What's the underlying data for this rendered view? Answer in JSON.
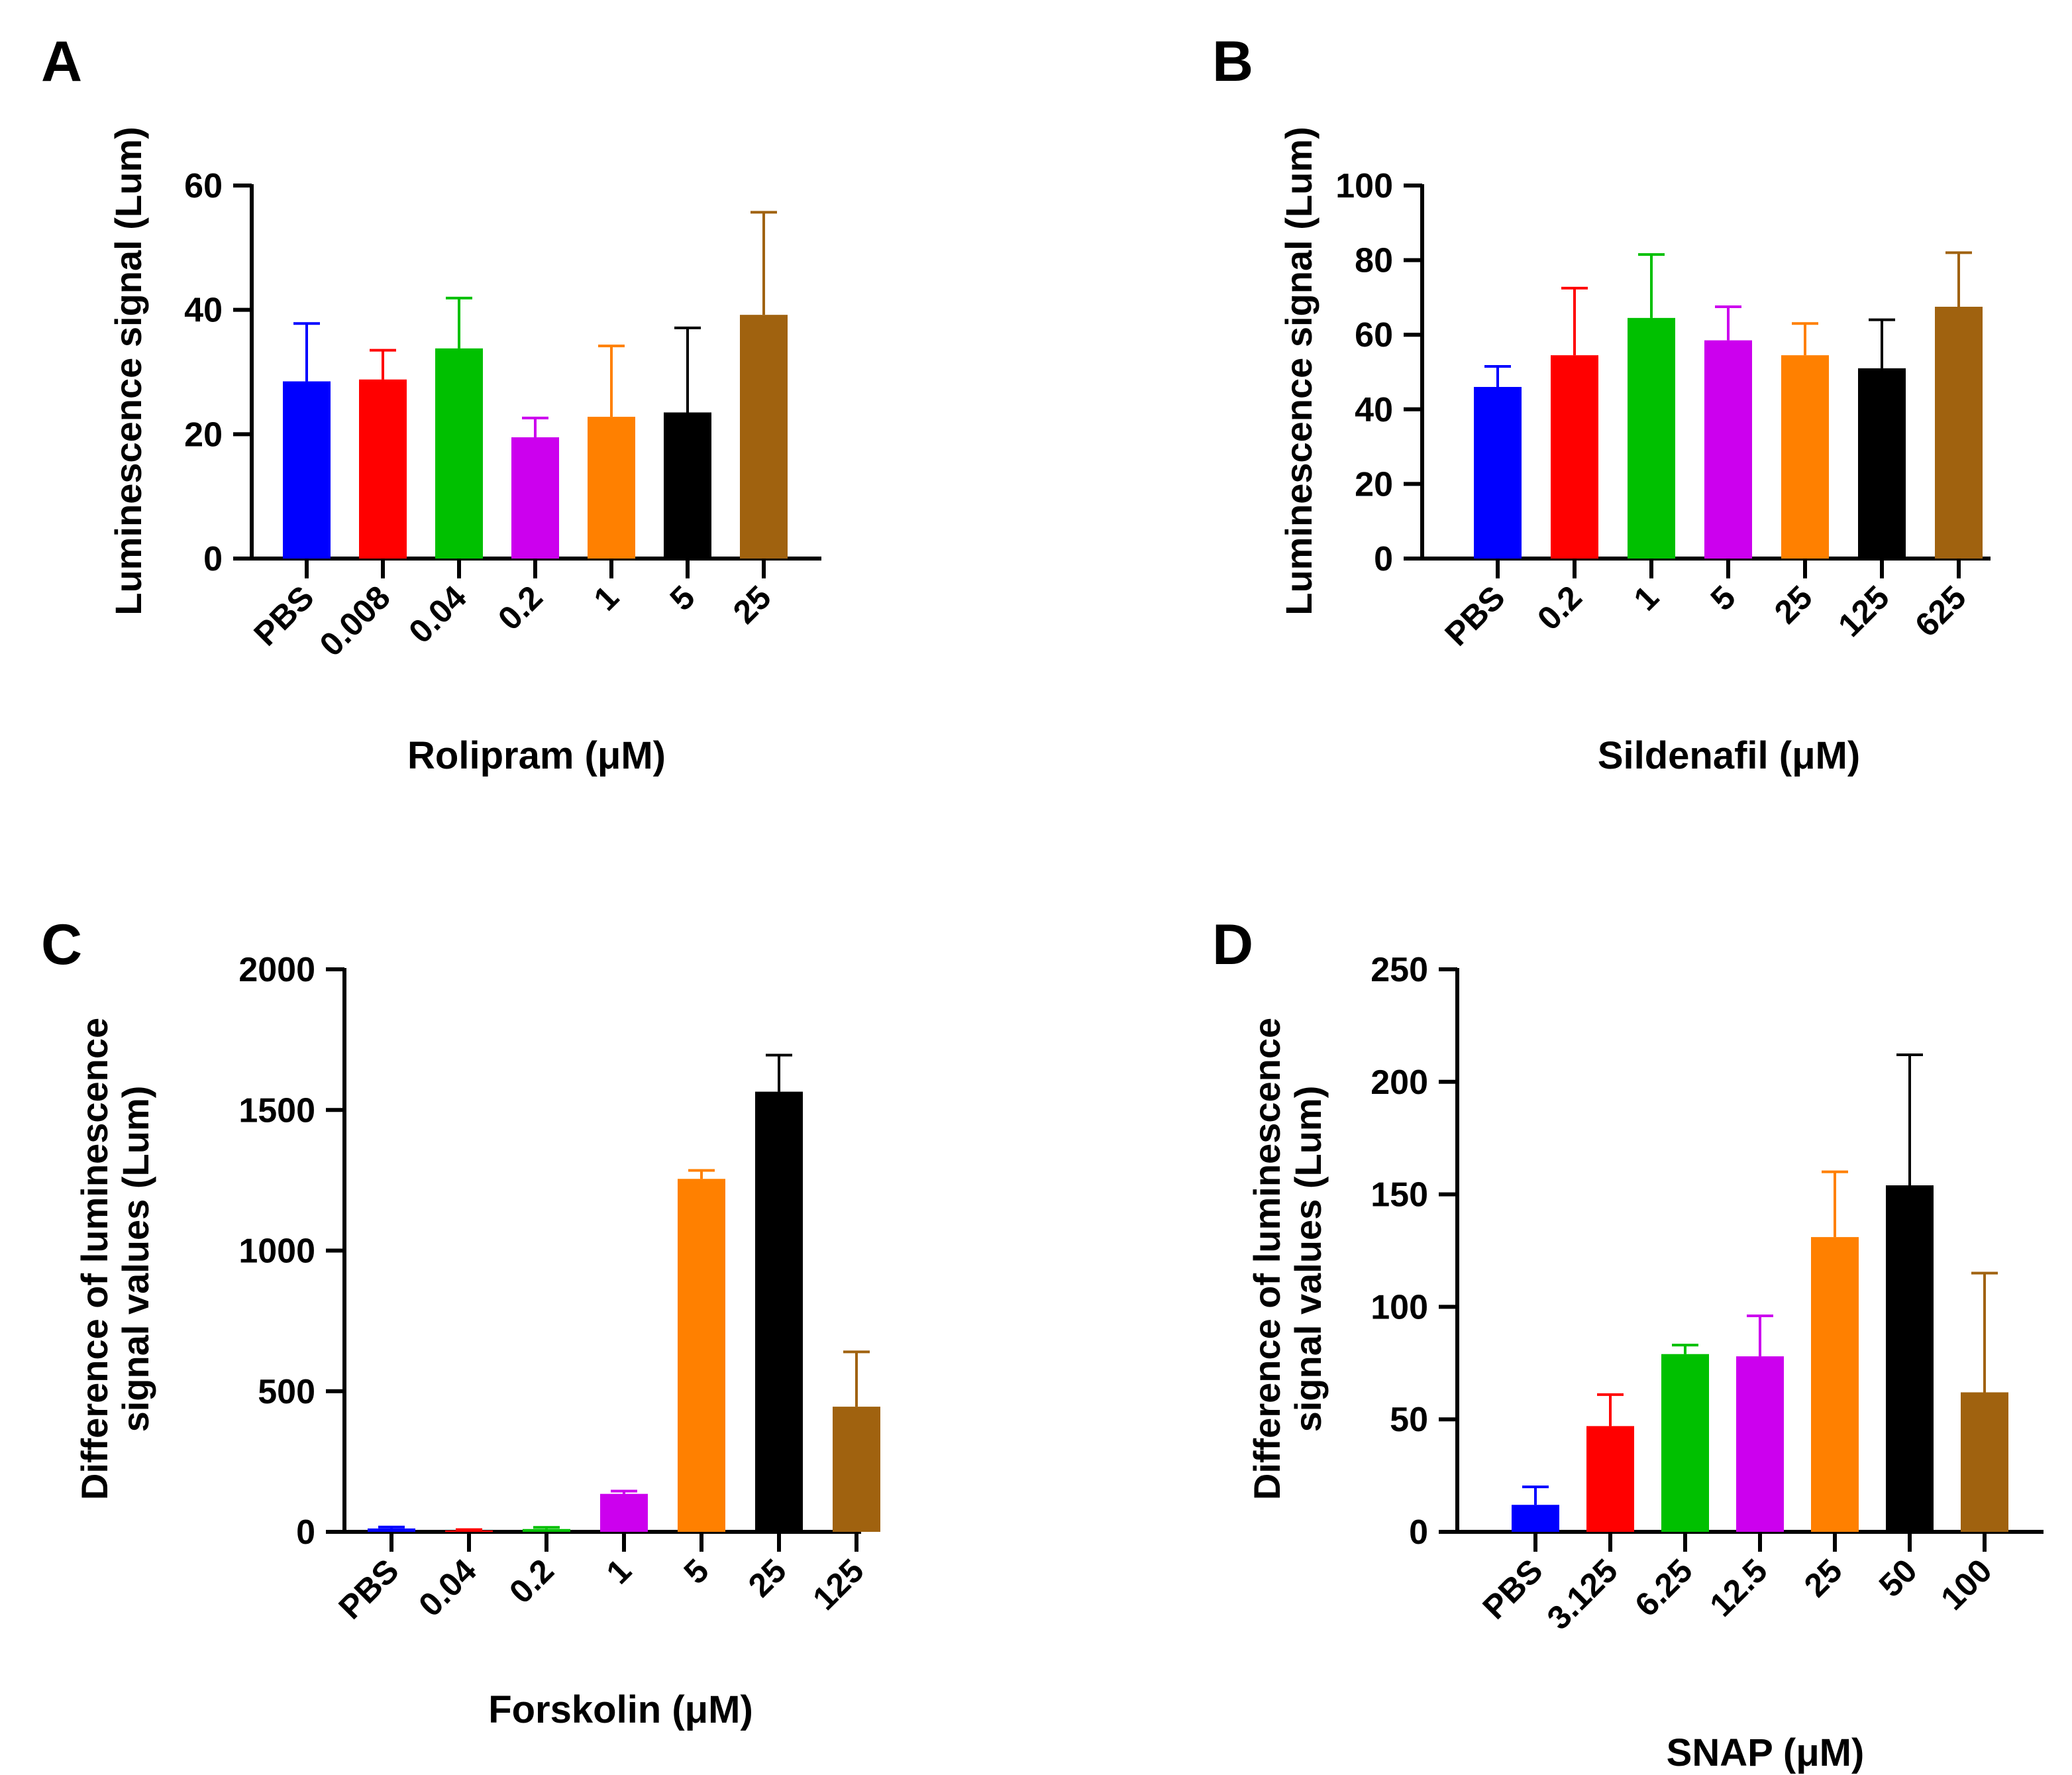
{
  "chart_data": [
    {
      "id": "A",
      "type": "bar",
      "panel_label": "A",
      "xlabel": "Rolipram (μM)",
      "ylabel": [
        "Luminescence signal (Lum)"
      ],
      "ylim": [
        0,
        60
      ],
      "yticks": [
        0,
        20,
        40,
        60
      ],
      "categories": [
        "PBS",
        "0.008",
        "0.04",
        "0.2",
        "1",
        "5",
        "25"
      ],
      "values": [
        28.5,
        28.8,
        33.8,
        19.5,
        22.8,
        23.5,
        39.2
      ],
      "errors": [
        9.3,
        4.7,
        8.1,
        3.1,
        11.4,
        13.6,
        16.5
      ],
      "colors": [
        "#0000ff",
        "#ff0000",
        "#00c000",
        "#cc00ee",
        "#ff8000",
        "#000000",
        "#a0620f"
      ]
    },
    {
      "id": "B",
      "type": "bar",
      "panel_label": "B",
      "xlabel": "Sildenafil (μM)",
      "ylabel": [
        "Luminescence signal (Lum)"
      ],
      "ylim": [
        0,
        100
      ],
      "yticks": [
        0,
        20,
        40,
        60,
        80,
        100
      ],
      "categories": [
        "PBS",
        "0.2",
        "1",
        "5",
        "25",
        "125",
        "625"
      ],
      "values": [
        46.0,
        54.5,
        64.5,
        58.5,
        54.5,
        51.0,
        67.5
      ],
      "errors": [
        5.5,
        18.0,
        17.0,
        9.0,
        8.5,
        13.0,
        14.5
      ],
      "colors": [
        "#0000ff",
        "#ff0000",
        "#00c000",
        "#cc00ee",
        "#ff8000",
        "#000000",
        "#a0620f"
      ]
    },
    {
      "id": "C",
      "type": "bar",
      "panel_label": "C",
      "xlabel": "Forskolin (μM)",
      "ylabel": [
        "Difference of luminescence",
        "signal values (Lum)"
      ],
      "ylim": [
        0,
        2000
      ],
      "yticks": [
        0,
        500,
        1000,
        1500,
        2000
      ],
      "categories": [
        "PBS",
        "0.04",
        "0.2",
        "1",
        "5",
        "25",
        "125"
      ],
      "values": [
        12,
        5,
        10,
        135,
        1255,
        1565,
        445
      ],
      "errors": [
        5,
        3,
        6,
        10,
        30,
        130,
        195
      ],
      "colors": [
        "#0000ff",
        "#ff0000",
        "#00c000",
        "#cc00ee",
        "#ff8000",
        "#000000",
        "#a0620f"
      ]
    },
    {
      "id": "D",
      "type": "bar",
      "panel_label": "D",
      "xlabel": "SNAP (μM)",
      "ylabel": [
        "Difference of luminescence",
        "signal values (Lum)"
      ],
      "ylim": [
        0,
        250
      ],
      "yticks": [
        0,
        50,
        100,
        150,
        200,
        250
      ],
      "categories": [
        "PBS",
        "3.125",
        "6.25",
        "12.5",
        "25",
        "50",
        "100"
      ],
      "values": [
        12,
        47,
        79,
        78,
        131,
        154,
        62
      ],
      "errors": [
        8,
        14,
        4,
        18,
        29,
        58,
        53
      ],
      "colors": [
        "#0000ff",
        "#ff0000",
        "#00c000",
        "#cc00ee",
        "#ff8000",
        "#000000",
        "#a0620f"
      ]
    }
  ]
}
